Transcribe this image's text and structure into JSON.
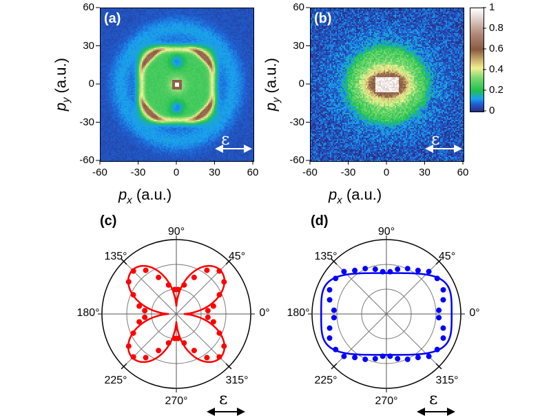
{
  "chart_data": [
    {
      "type": "heatmap",
      "panel": "(a)",
      "xlabel": "p_x (a.u.)",
      "ylabel": "p_y (a.u.)",
      "xlim": [
        -60,
        60
      ],
      "ylim": [
        -60,
        60
      ],
      "xticks": [
        "-60",
        "-30",
        "0",
        "30",
        "60"
      ],
      "yticks": [
        "60",
        "30",
        "0",
        "-30",
        "-60"
      ],
      "annotation": "ε"
    },
    {
      "type": "heatmap",
      "panel": "(b)",
      "xlabel": "p_x (a.u.)",
      "ylabel": "p_y (a.u.)",
      "xlim": [
        -60,
        60
      ],
      "ylim": [
        -60,
        60
      ],
      "xticks": [
        "-60",
        "-30",
        "0",
        "30",
        "60"
      ],
      "yticks": [
        "60",
        "30",
        "0",
        "-30",
        "-60"
      ],
      "annotation": "ε",
      "colorbar": {
        "range": [
          0,
          1
        ],
        "ticks": [
          "1",
          "0.8",
          "0.6",
          "0.4",
          "0.2",
          "0"
        ]
      }
    },
    {
      "type": "scatter",
      "polar": true,
      "panel": "(c)",
      "color": "#ff0000",
      "angle_labels": [
        "90°",
        "45°",
        "0°",
        "315°",
        "270°",
        "225°",
        "180°",
        "135°"
      ],
      "points_first_quadrant": {
        "angle_deg": [
          6,
          12,
          24,
          34,
          45,
          55,
          64,
          75,
          86
        ],
        "r": [
          1.28,
          1.53,
          1.9,
          2.32,
          2.45,
          2.15,
          1.64,
          1.21,
          0.99
        ]
      },
      "symmetry": "mirrored into all four quadrants",
      "fit_curve": "r = 0.3 + 2.2·|sin 2θ|",
      "rmax": 3,
      "annotation": "ε"
    },
    {
      "type": "scatter",
      "polar": true,
      "panel": "(d)",
      "color": "#0000ff",
      "angle_labels": [
        "90°",
        "45°",
        "0°",
        "315°",
        "270°",
        "225°",
        "180°",
        "135°"
      ],
      "points_first_quadrant": {
        "angle_deg": [
          4,
          14,
          23,
          35,
          45,
          54,
          65,
          76,
          85
        ],
        "r": [
          2.12,
          2.36,
          2.49,
          2.5,
          2.42,
          2.17,
          2.02,
          1.86,
          1.71
        ]
      },
      "symmetry": "mirrored into all four quadrants",
      "fit_curve": "superellipse a=2.63, b=1.65, n=4",
      "rmax": 3,
      "annotation": "ε"
    }
  ],
  "labels": {
    "a": "(a)",
    "b": "(b)",
    "c": "(c)",
    "d": "(d)",
    "px_main": "p",
    "px_sub": "x",
    "py_main": "p",
    "py_sub": "y",
    "unit": " (a.u.)",
    "eps": "ε"
  }
}
